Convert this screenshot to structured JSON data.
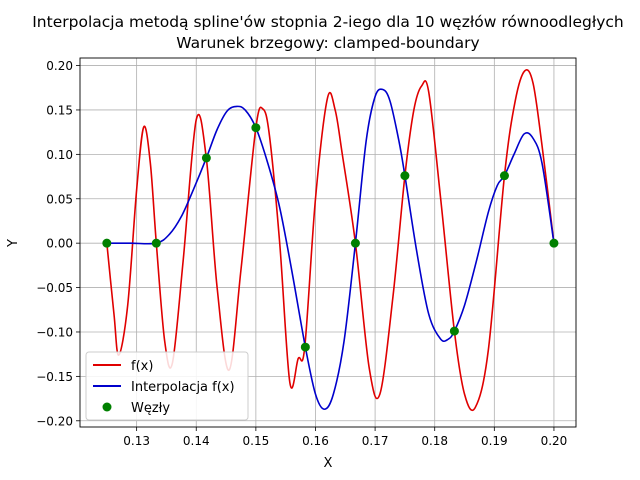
{
  "chart_data": {
    "type": "line",
    "title_line1": "Interpolacja metodą spline'ów stopnia 2-iego dla 10 węzłów równoodległych",
    "title_line2": "Warunek brzegowy: clamped-boundary",
    "xlabel": "X",
    "ylabel": "Y",
    "xlim": [
      0.1205,
      0.2037
    ],
    "ylim": [
      -0.207,
      0.2085
    ],
    "xticks": [
      0.13,
      0.14,
      0.15,
      0.16,
      0.17,
      0.18,
      0.19,
      0.2
    ],
    "xtick_labels": [
      "0.13",
      "0.14",
      "0.15",
      "0.16",
      "0.17",
      "0.18",
      "0.19",
      "0.20"
    ],
    "yticks": [
      -0.2,
      -0.15,
      -0.1,
      -0.05,
      0.0,
      0.05,
      0.1,
      0.15,
      0.2
    ],
    "ytick_labels": [
      "−0.20",
      "−0.15",
      "−0.10",
      "−0.05",
      "0.00",
      "0.05",
      "0.10",
      "0.15",
      "0.20"
    ],
    "grid": true,
    "legend_position": "lower-left",
    "series": [
      {
        "name": "f(x)",
        "kind": "line",
        "color": "#e00000",
        "x": [
          0.125,
          0.1262,
          0.127,
          0.1285,
          0.13,
          0.1312,
          0.1323,
          0.1333,
          0.1347,
          0.136,
          0.1378,
          0.14,
          0.1417,
          0.1435,
          0.1455,
          0.1475,
          0.15,
          0.1512,
          0.1523,
          0.154,
          0.1557,
          0.1571,
          0.1582,
          0.16,
          0.162,
          0.1633,
          0.1645,
          0.1667,
          0.169,
          0.1708,
          0.173,
          0.175,
          0.1765,
          0.1778,
          0.179,
          0.181,
          0.1833,
          0.185,
          0.1868,
          0.189,
          0.1917,
          0.1935,
          0.1951,
          0.1965,
          0.198,
          0.2
        ],
        "y": [
          0.0,
          -0.08,
          -0.126,
          -0.07,
          0.06,
          0.131,
          0.09,
          0.0,
          -0.11,
          -0.135,
          -0.02,
          0.139,
          0.095,
          -0.05,
          -0.143,
          -0.03,
          0.13,
          0.151,
          0.12,
          0.0,
          -0.157,
          -0.13,
          -0.117,
          0.05,
          0.163,
          0.15,
          0.1,
          0.0,
          -0.14,
          -0.17,
          -0.06,
          0.076,
          0.15,
          0.177,
          0.17,
          0.05,
          -0.099,
          -0.17,
          -0.185,
          -0.12,
          0.076,
          0.16,
          0.194,
          0.18,
          0.11,
          0.0
        ]
      },
      {
        "name": "Interpolacja f(x)",
        "kind": "line",
        "color": "#0000cc",
        "x": [
          0.125,
          0.129,
          0.1333,
          0.1355,
          0.1375,
          0.1395,
          0.1417,
          0.1435,
          0.1452,
          0.1468,
          0.1482,
          0.15,
          0.152,
          0.154,
          0.156,
          0.1583,
          0.16,
          0.1615,
          0.163,
          0.1648,
          0.1667,
          0.1685,
          0.17,
          0.1713,
          0.1725,
          0.174,
          0.175,
          0.177,
          0.179,
          0.181,
          0.1823,
          0.1833,
          0.185,
          0.187,
          0.189,
          0.1905,
          0.1917,
          0.1933,
          0.195,
          0.1965,
          0.198,
          0.2
        ],
        "y": [
          0.0,
          0.0,
          0.0,
          0.01,
          0.03,
          0.06,
          0.096,
          0.128,
          0.149,
          0.154,
          0.15,
          0.13,
          0.09,
          0.04,
          -0.03,
          -0.117,
          -0.17,
          -0.187,
          -0.17,
          -0.11,
          0.0,
          0.115,
          0.165,
          0.173,
          0.16,
          0.115,
          0.076,
          -0.01,
          -0.08,
          -0.108,
          -0.108,
          -0.099,
          -0.07,
          -0.02,
          0.035,
          0.065,
          0.076,
          0.1,
          0.123,
          0.118,
          0.09,
          0.0
        ]
      },
      {
        "name": "Węzły",
        "kind": "scatter",
        "color": "#008000",
        "x": [
          0.125,
          0.1333,
          0.1417,
          0.15,
          0.1583,
          0.1667,
          0.175,
          0.1833,
          0.1917,
          0.2
        ],
        "y": [
          0.0,
          0.0,
          0.096,
          0.13,
          -0.117,
          0.0,
          0.076,
          -0.099,
          0.076,
          0.0
        ]
      }
    ]
  }
}
